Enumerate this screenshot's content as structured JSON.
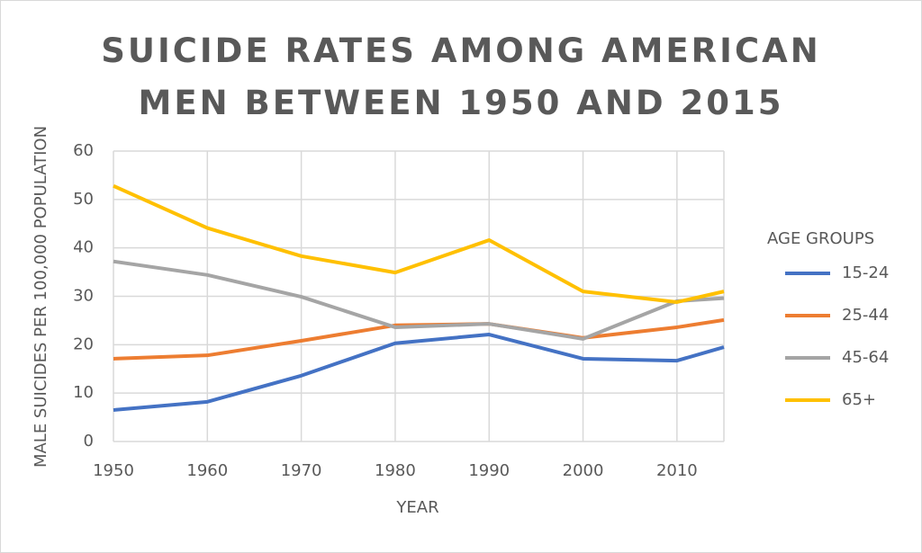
{
  "chart_data": {
    "type": "line",
    "title": "SUICIDE RATES AMONG AMERICAN MEN BETWEEN 1950 AND 2015",
    "x_label": "YEAR",
    "y_label": "MALE SUICIDES PER 100,000 POPULATION",
    "legend_title": "AGE GROUPS",
    "legend": "right",
    "grid": true,
    "x": [
      1950,
      1960,
      1970,
      1980,
      1990,
      2000,
      2010,
      2015
    ],
    "xlim": [
      1950,
      2015
    ],
    "xticks": [
      1950,
      1960,
      1970,
      1980,
      1990,
      2000,
      2010
    ],
    "ylim": [
      0,
      60
    ],
    "yticks": [
      0,
      10,
      20,
      30,
      40,
      50,
      60
    ],
    "series": [
      {
        "name": "15-24",
        "color": "#4472c4",
        "values": [
          6.5,
          8.2,
          13.6,
          20.3,
          22.1,
          17.1,
          16.7,
          19.5
        ]
      },
      {
        "name": "25-44",
        "color": "#ed7d31",
        "values": [
          17.1,
          17.8,
          20.8,
          24.0,
          24.3,
          21.4,
          23.6,
          25.1
        ]
      },
      {
        "name": "45-64",
        "color": "#a5a5a5",
        "values": [
          37.2,
          34.4,
          29.9,
          23.6,
          24.3,
          21.2,
          29.0,
          29.6
        ]
      },
      {
        "name": "65+",
        "color": "#ffc000",
        "values": [
          52.8,
          44.1,
          38.3,
          34.9,
          41.6,
          31.0,
          28.8,
          31.0
        ]
      }
    ]
  }
}
